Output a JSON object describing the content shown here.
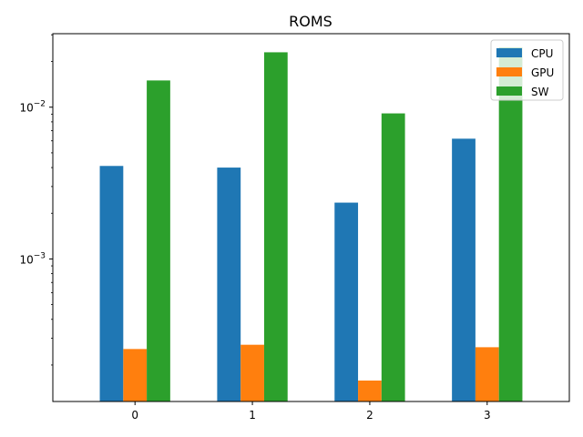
{
  "chart_data": {
    "type": "bar",
    "title": "ROMS",
    "xlabel": "",
    "ylabel": "",
    "yscale": "log",
    "ylim": [
      0.000115,
      0.0305
    ],
    "categories": [
      "0",
      "1",
      "2",
      "3"
    ],
    "series": [
      {
        "name": "CPU",
        "color": "#1f77b4",
        "values": [
          0.0041,
          0.004,
          0.00235,
          0.0062
        ]
      },
      {
        "name": "GPU",
        "color": "#ff7f0e",
        "values": [
          0.000255,
          0.000272,
          0.000158,
          0.000262
        ]
      },
      {
        "name": "SW",
        "color": "#2ca02c",
        "values": [
          0.015,
          0.023,
          0.0091,
          0.0248
        ]
      }
    ],
    "y_major_ticks": [
      {
        "value": 0.001,
        "base": "10",
        "exp": "−3"
      },
      {
        "value": 0.01,
        "base": "10",
        "exp": "−2"
      }
    ],
    "grid": false,
    "legend_position": "top-right"
  }
}
